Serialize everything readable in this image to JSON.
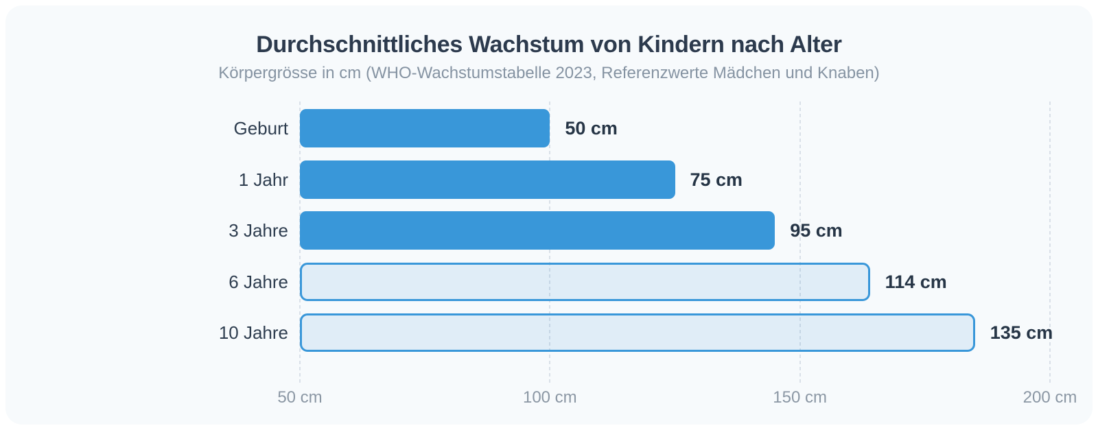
{
  "chart_data": {
    "type": "bar",
    "orientation": "horizontal",
    "title": "Durchschnittliches Wachstum von Kindern nach Alter",
    "subtitle": "Körpergrösse in cm (WHO-Wachstumstabelle 2023, Referenzwerte Mädchen und Knaben)",
    "categories": [
      "Geburt",
      "1 Jahr",
      "3 Jahre",
      "6 Jahre",
      "10 Jahre"
    ],
    "values": [
      50,
      75,
      95,
      114,
      135
    ],
    "value_labels": [
      "50 cm",
      "75 cm",
      "95 cm",
      "114 cm",
      "135 cm"
    ],
    "bar_styles": [
      "solid",
      "solid",
      "solid",
      "outline",
      "outline"
    ],
    "unit": "cm",
    "x_axis": {
      "ticks": [
        50,
        100,
        150,
        200
      ],
      "tick_labels": [
        "50 cm",
        "100 cm",
        "150 cm",
        "200 cm"
      ]
    },
    "grid": "dashed-vertical",
    "legend": null,
    "colors": {
      "bar_fill": "#3997d9",
      "outline_bar_border": "#3997d9",
      "outline_bar_fill": "#e9f1fa",
      "gridline": "#d9e0e8",
      "title": "#2c3a4d",
      "subtitle": "#8593a2",
      "category_label": "#2e3d4f",
      "value_label": "#263546",
      "axis_label": "#8b97a4",
      "card_background": "#f7fafc",
      "page_background": "#ffffff"
    }
  }
}
